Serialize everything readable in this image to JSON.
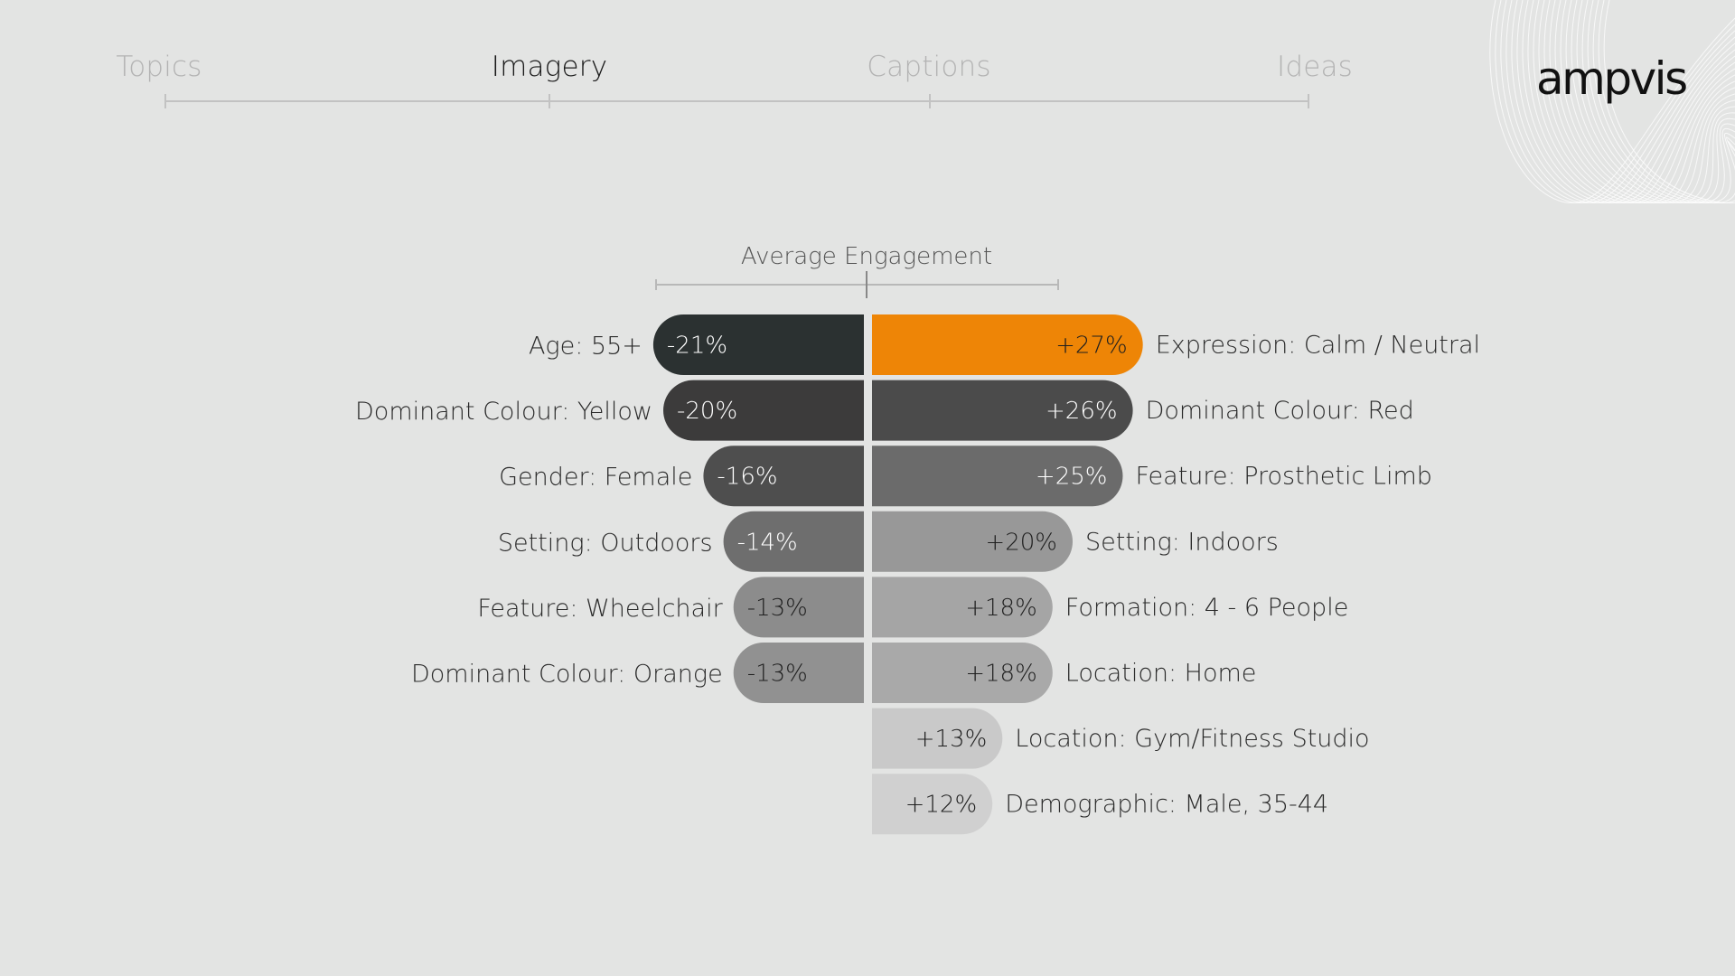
{
  "nav": {
    "tabs": [
      {
        "label": "Topics",
        "active": false
      },
      {
        "label": "Imagery",
        "active": true
      },
      {
        "label": "Captions",
        "active": false
      },
      {
        "label": "Ideas",
        "active": false
      }
    ]
  },
  "brand": {
    "logo_text": "ampvis"
  },
  "colors": {
    "background": "#e3e4e3",
    "accent": "#ee8506",
    "nav_inactive": "#b3b3b3",
    "nav_active": "#1a1a1a"
  },
  "chart_data": {
    "type": "bar",
    "orientation": "diverging-horizontal",
    "title": "Average Engagement",
    "unit": "%",
    "negative": [
      {
        "label": "Age: 55+",
        "value": -21,
        "display": "-21%",
        "color": "#2b3131"
      },
      {
        "label": "Dominant Colour: Yellow",
        "value": -20,
        "display": "-20%",
        "color": "#3c3b3b"
      },
      {
        "label": "Gender: Female",
        "value": -16,
        "display": "-16%",
        "color": "#4e4e4e"
      },
      {
        "label": "Setting: Outdoors",
        "value": -14,
        "display": "-14%",
        "color": "#6e6e6e"
      },
      {
        "label": "Feature: Wheelchair",
        "value": -13,
        "display": "-13%",
        "color": "#8c8c8c"
      },
      {
        "label": "Dominant Colour: Orange",
        "value": -13,
        "display": "-13%",
        "color": "#919191"
      }
    ],
    "positive": [
      {
        "label": "Expression: Calm / Neutral",
        "value": 27,
        "display": "+27%",
        "color": "#ee8506"
      },
      {
        "label": "Dominant Colour: Red",
        "value": 26,
        "display": "+26%",
        "color": "#4b4b4b"
      },
      {
        "label": "Feature: Prosthetic Limb",
        "value": 25,
        "display": "+25%",
        "color": "#6b6b6b"
      },
      {
        "label": "Setting: Indoors",
        "value": 20,
        "display": "+20%",
        "color": "#989898"
      },
      {
        "label": "Formation: 4 - 6 People",
        "value": 18,
        "display": "+18%",
        "color": "#a5a5a5"
      },
      {
        "label": "Location: Home",
        "value": 18,
        "display": "+18%",
        "color": "#a9a9a9"
      },
      {
        "label": "Location: Gym/Fitness Studio",
        "value": 13,
        "display": "+13%",
        "color": "#c9c9c9"
      },
      {
        "label": "Demographic: Male, 35-44",
        "value": 12,
        "display": "+12%",
        "color": "#d0d0d0"
      }
    ]
  }
}
